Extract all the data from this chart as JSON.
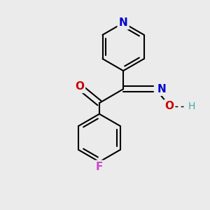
{
  "background_color": "#ebebeb",
  "bond_color": "#000000",
  "bond_width": 1.5,
  "atom_colors": {
    "N_pyridine": "#0000cc",
    "N_oxime": "#0000cc",
    "O_ketone": "#cc0000",
    "O_oxime": "#cc0000",
    "F": "#cc44cc",
    "H": "#44aaaa",
    "C": "#000000"
  },
  "font_size": 10,
  "fig_size": [
    3.0,
    3.0
  ],
  "dpi": 100,
  "xlim": [
    -2.5,
    2.5
  ],
  "ylim": [
    -3.0,
    3.2
  ]
}
